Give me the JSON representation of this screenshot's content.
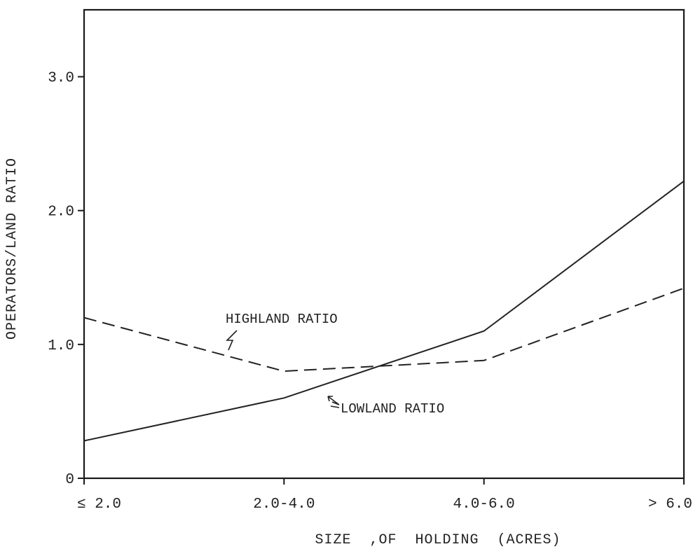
{
  "chart_data": {
    "type": "line",
    "title": "",
    "xlabel": "SIZE  ,OF  HOLDING  (ACRES)",
    "ylabel": "OPERATORS/LAND RATIO",
    "categories": [
      "≤ 2.0",
      "2.0-4.0",
      "4.0-6.0",
      "> 6.0"
    ],
    "y_ticks": [
      {
        "value": 0,
        "label": "0"
      },
      {
        "value": 1.0,
        "label": "1.0"
      },
      {
        "value": 2.0,
        "label": "2.0"
      },
      {
        "value": 3.0,
        "label": "3.0"
      }
    ],
    "ylim": [
      0,
      3.5
    ],
    "grid": false,
    "series": [
      {
        "name": "HIGHLAND RATIO",
        "style": "dashed",
        "color": "#222222",
        "values": [
          1.2,
          0.8,
          0.88,
          1.42
        ]
      },
      {
        "name": "LOWLAND RATIO",
        "style": "solid",
        "color": "#222222",
        "values": [
          0.28,
          0.6,
          1.1,
          2.22
        ]
      }
    ],
    "annotations": [
      {
        "text": "HIGHLAND RATIO",
        "series": "HIGHLAND RATIO"
      },
      {
        "text": "LOWLAND RATIO",
        "series": "LOWLAND RATIO"
      }
    ]
  }
}
